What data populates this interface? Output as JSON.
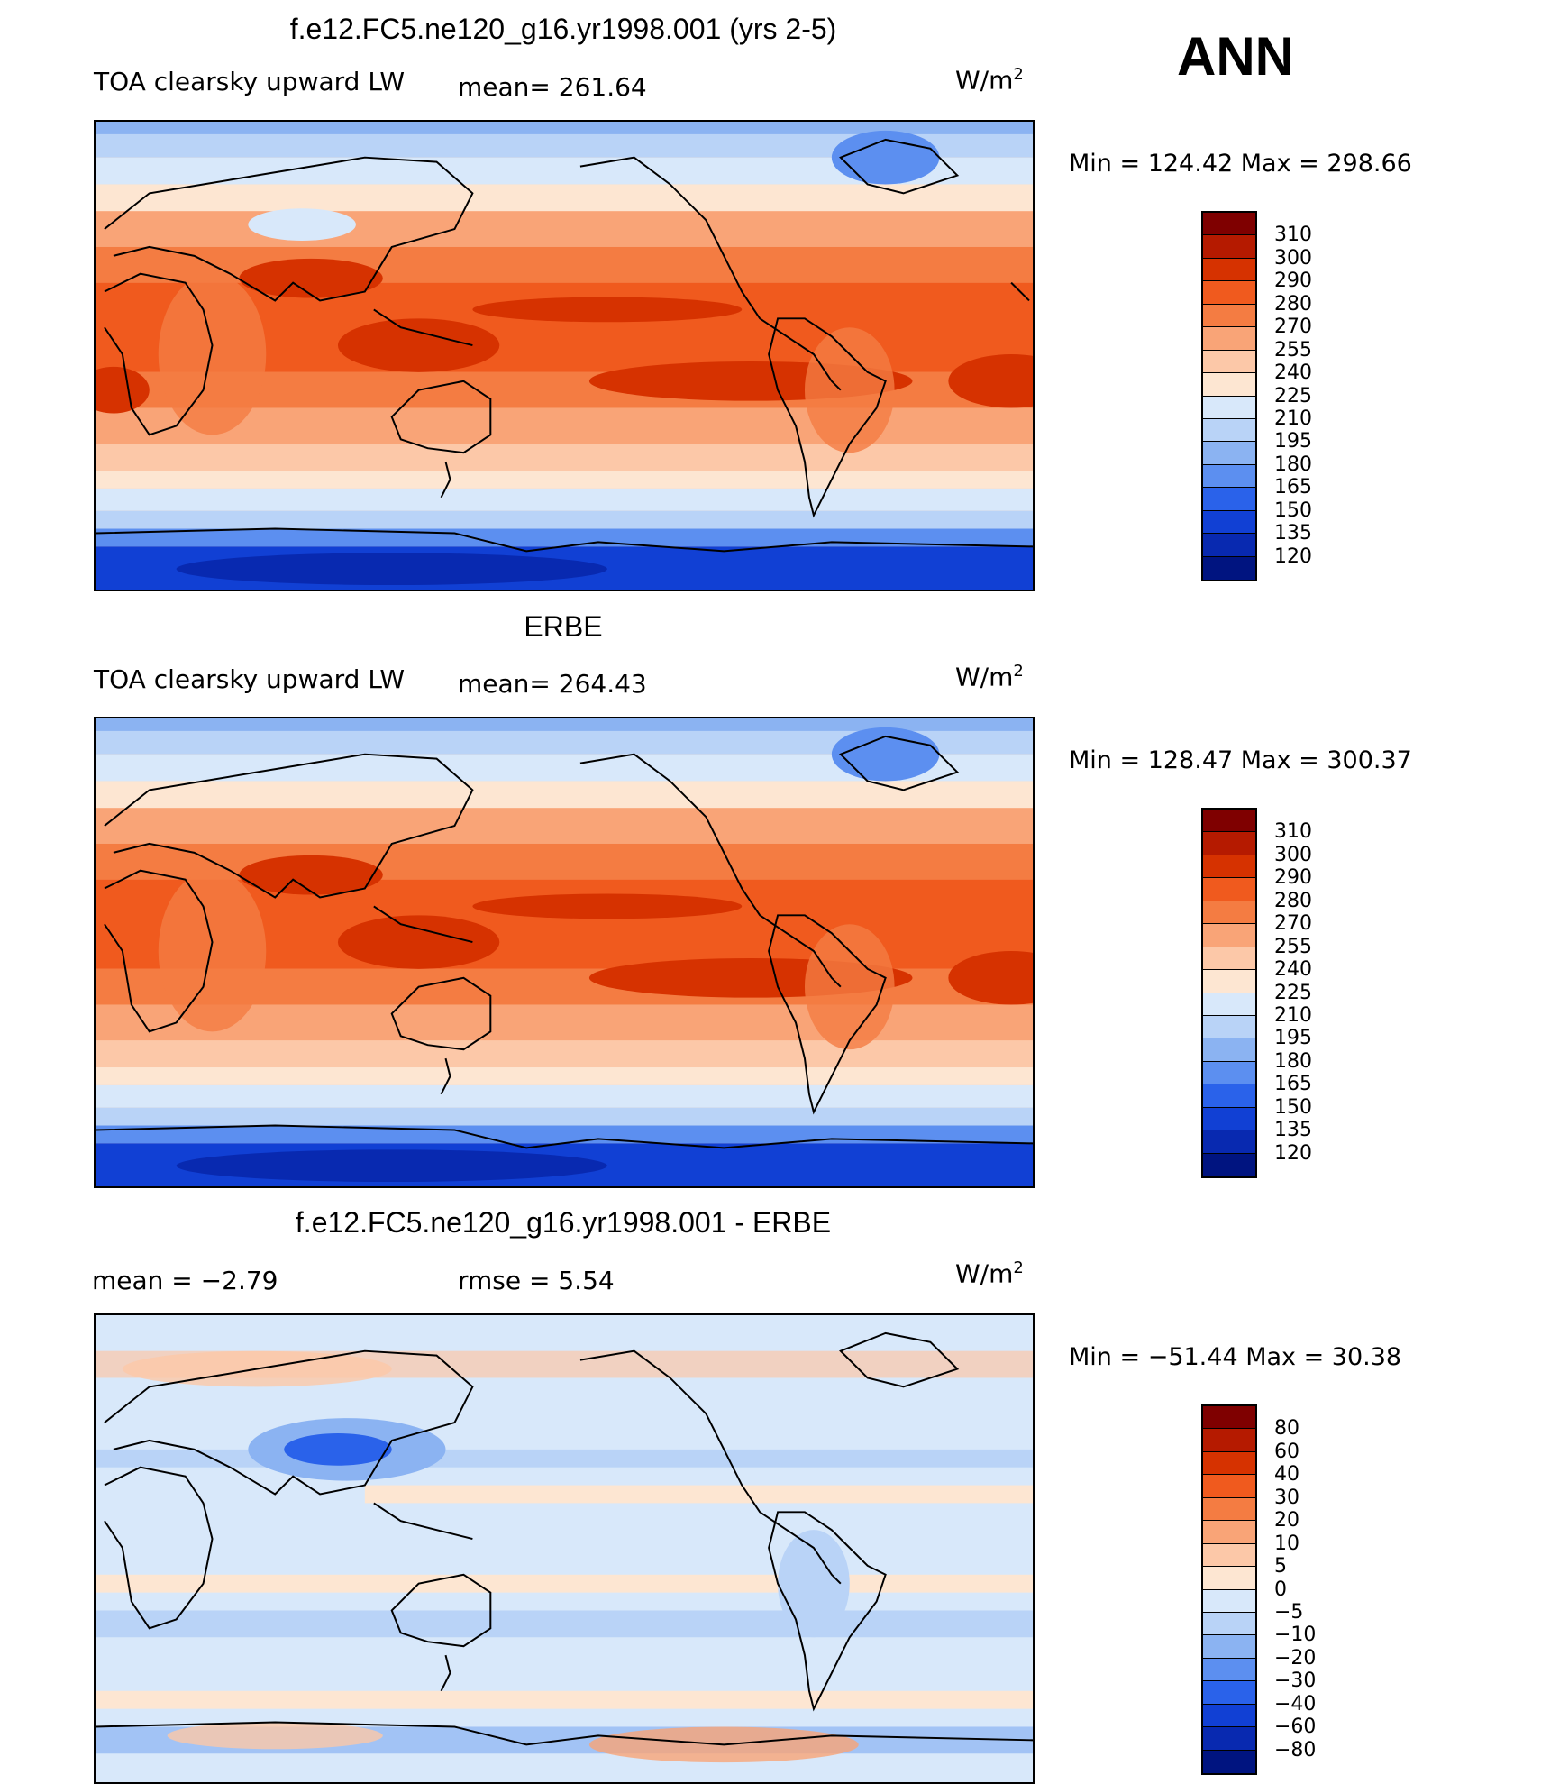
{
  "season": "ANN",
  "units": "W/m",
  "units_sup": "2",
  "panels": [
    {
      "id": "model",
      "title": "f.e12.FC5.ne120_g16.yr1998.001 (yrs 2-5)",
      "left_label": "TOA clearsky upward LW",
      "mean_text": "mean=  261.64",
      "minmax_text": "Min  =  124.42  Max  =  298.66",
      "map_alt": "global-map",
      "colorbar": {
        "levels": [
          "310",
          "300",
          "290",
          "280",
          "270",
          "255",
          "240",
          "225",
          "210",
          "195",
          "180",
          "165",
          "150",
          "135",
          "120"
        ],
        "colors": [
          "#7f0000",
          "#b51a00",
          "#d63200",
          "#f05a1e",
          "#f47c42",
          "#f9a477",
          "#fcc8a8",
          "#fde6d2",
          "#d8e8fa",
          "#b9d3f7",
          "#8bb3f2",
          "#5c8ff0",
          "#2a62ea",
          "#1140d4",
          "#0829b0",
          "#001480"
        ]
      }
    },
    {
      "id": "obs",
      "title": "ERBE",
      "left_label": "TOA clearsky upward LW",
      "mean_text": "mean=  264.43",
      "minmax_text": "Min  =  128.47  Max  =  300.37",
      "colorbar": {
        "levels": [
          "310",
          "300",
          "290",
          "280",
          "270",
          "255",
          "240",
          "225",
          "210",
          "195",
          "180",
          "165",
          "150",
          "135",
          "120"
        ],
        "colors": [
          "#7f0000",
          "#b51a00",
          "#d63200",
          "#f05a1e",
          "#f47c42",
          "#f9a477",
          "#fcc8a8",
          "#fde6d2",
          "#d8e8fa",
          "#b9d3f7",
          "#8bb3f2",
          "#5c8ff0",
          "#2a62ea",
          "#1140d4",
          "#0829b0",
          "#001480"
        ]
      }
    },
    {
      "id": "diff",
      "title": "f.e12.FC5.ne120_g16.yr1998.001 - ERBE",
      "mean_text": "mean  =    −2.79",
      "rmse_text": "rmse  =     5.54",
      "minmax_text": "Min  =  −51.44  Max  =    30.38",
      "colorbar": {
        "levels": [
          "80",
          "60",
          "40",
          "30",
          "20",
          "10",
          "5",
          "0",
          "−5",
          "−10",
          "−20",
          "−30",
          "−40",
          "−60",
          "−80"
        ],
        "colors": [
          "#7f0000",
          "#b51a00",
          "#d63200",
          "#f05a1e",
          "#f47c42",
          "#f9a477",
          "#fcc8a8",
          "#fde6d2",
          "#d8e8fa",
          "#b9d3f7",
          "#8bb3f2",
          "#5c8ff0",
          "#2a62ea",
          "#1140d4",
          "#0829b0",
          "#001480"
        ]
      }
    }
  ]
}
